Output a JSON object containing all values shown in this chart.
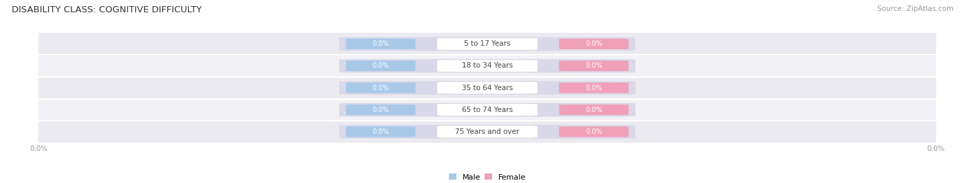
{
  "title": "DISABILITY CLASS: COGNITIVE DIFFICULTY",
  "source": "Source: ZipAtlas.com",
  "categories": [
    "5 to 17 Years",
    "18 to 34 Years",
    "35 to 64 Years",
    "65 to 74 Years",
    "75 Years and over"
  ],
  "male_values": [
    0.0,
    0.0,
    0.0,
    0.0,
    0.0
  ],
  "female_values": [
    0.0,
    0.0,
    0.0,
    0.0,
    0.0
  ],
  "male_color": "#a8c8e8",
  "female_color": "#f0a0b8",
  "male_label": "Male",
  "female_label": "Female",
  "tick_label": "0.0%",
  "background_color": "#ffffff",
  "stripe_color1": "#eaeaf0",
  "stripe_color2": "#f2f2f6",
  "bar_bg_color": "#d8d8e8",
  "center_box_color": "#ffffff",
  "center_text_color": "#444444",
  "title_fontsize": 9.5,
  "source_fontsize": 7.5,
  "cat_fontsize": 7.5,
  "val_fontsize": 7.0,
  "tick_fontsize": 7.5
}
